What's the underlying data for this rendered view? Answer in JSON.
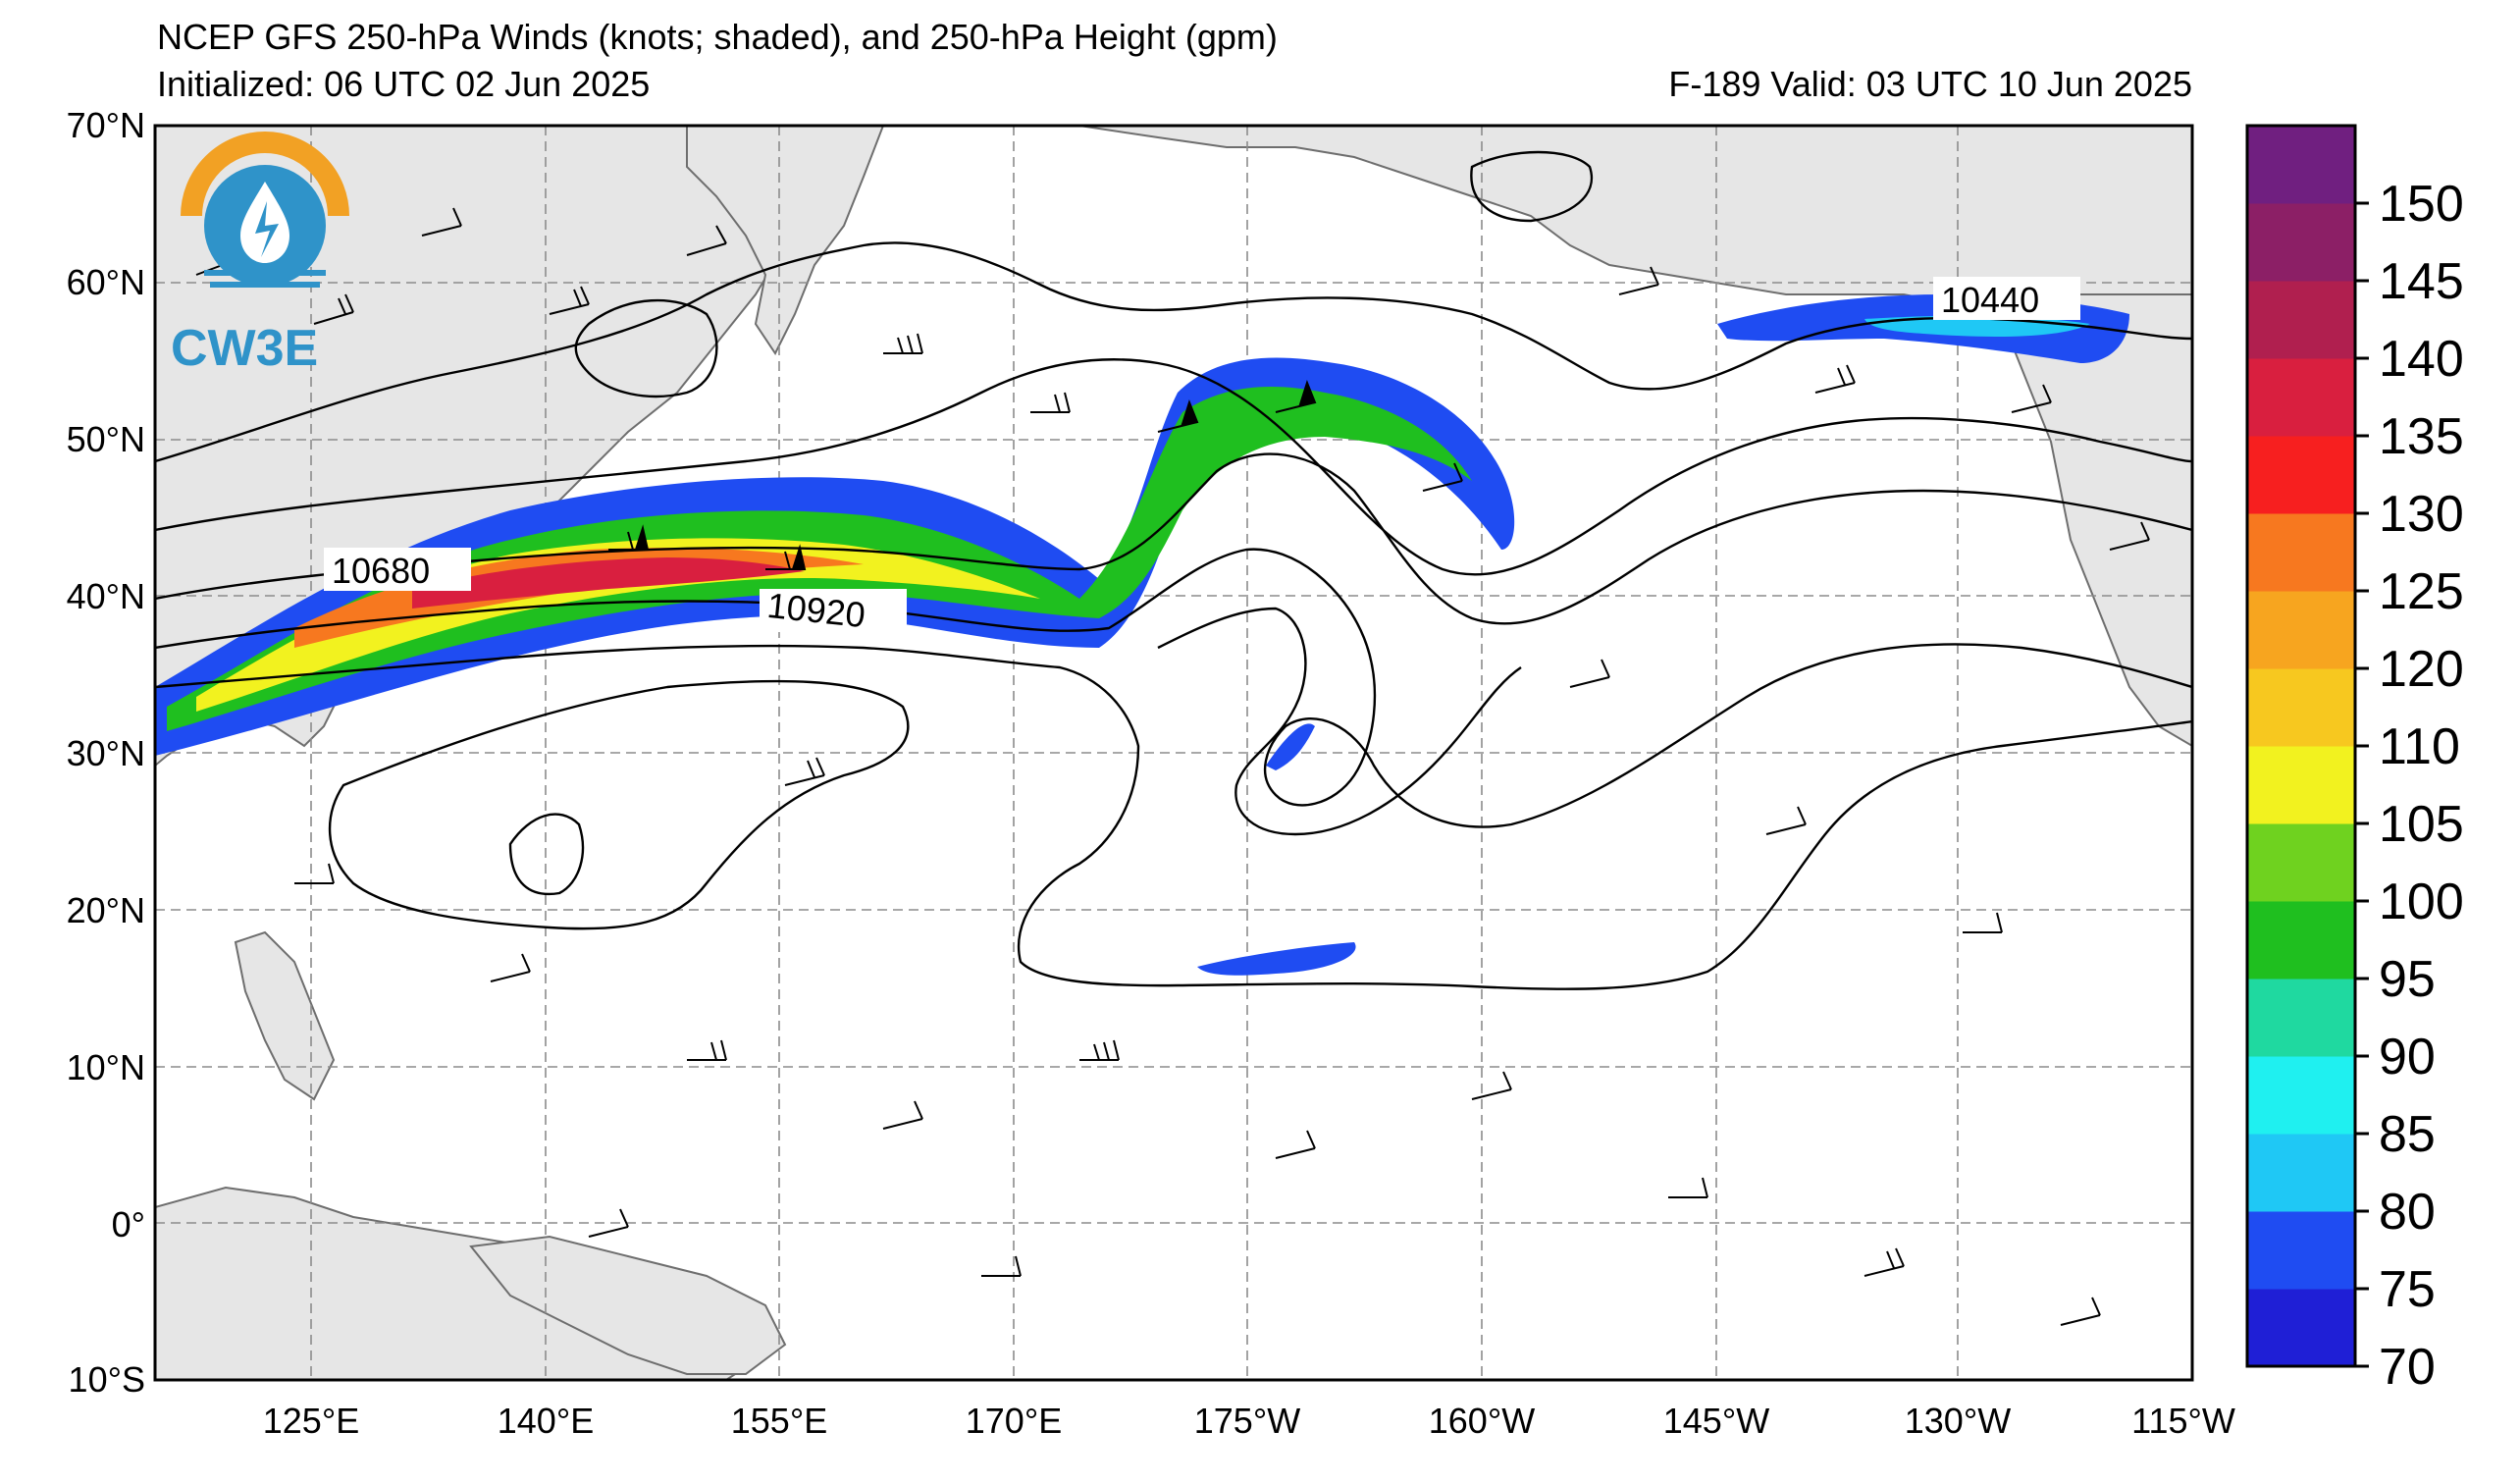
{
  "header": {
    "title": "NCEP GFS 250-hPa Winds (knots; shaded), and 250-hPa Height (gpm)",
    "initialized": "Initialized: 06 UTC 02 Jun 2025",
    "valid": "F-189  Valid: 03 UTC 10 Jun 2025"
  },
  "logo": {
    "text": "CW3E"
  },
  "map": {
    "lon_labels": [
      "125°E",
      "140°E",
      "155°E",
      "170°E",
      "175°W",
      "160°W",
      "145°W",
      "130°W",
      "115°W"
    ],
    "lat_labels": [
      "70°N",
      "60°N",
      "50°N",
      "40°N",
      "30°N",
      "20°N",
      "10°N",
      "0°",
      "10°S"
    ],
    "contour_labels": [
      {
        "text": "10680"
      },
      {
        "text": "10920"
      },
      {
        "text": "10440"
      }
    ]
  },
  "colorbar": {
    "ticks": [
      "70",
      "75",
      "80",
      "85",
      "90",
      "95",
      "100",
      "105",
      "110",
      "120",
      "125",
      "130",
      "135",
      "140",
      "145",
      "150"
    ],
    "colors": [
      "#1f1fd6",
      "#1f4cf2",
      "#1fc8f5",
      "#1ff0f0",
      "#1fd9a0",
      "#1fbf1f",
      "#6fd21f",
      "#f2f21f",
      "#f7c81f",
      "#f7a51f",
      "#f7781f",
      "#f71f1f",
      "#d91f3f",
      "#b01f4f",
      "#8c1f66",
      "#701f80"
    ]
  }
}
